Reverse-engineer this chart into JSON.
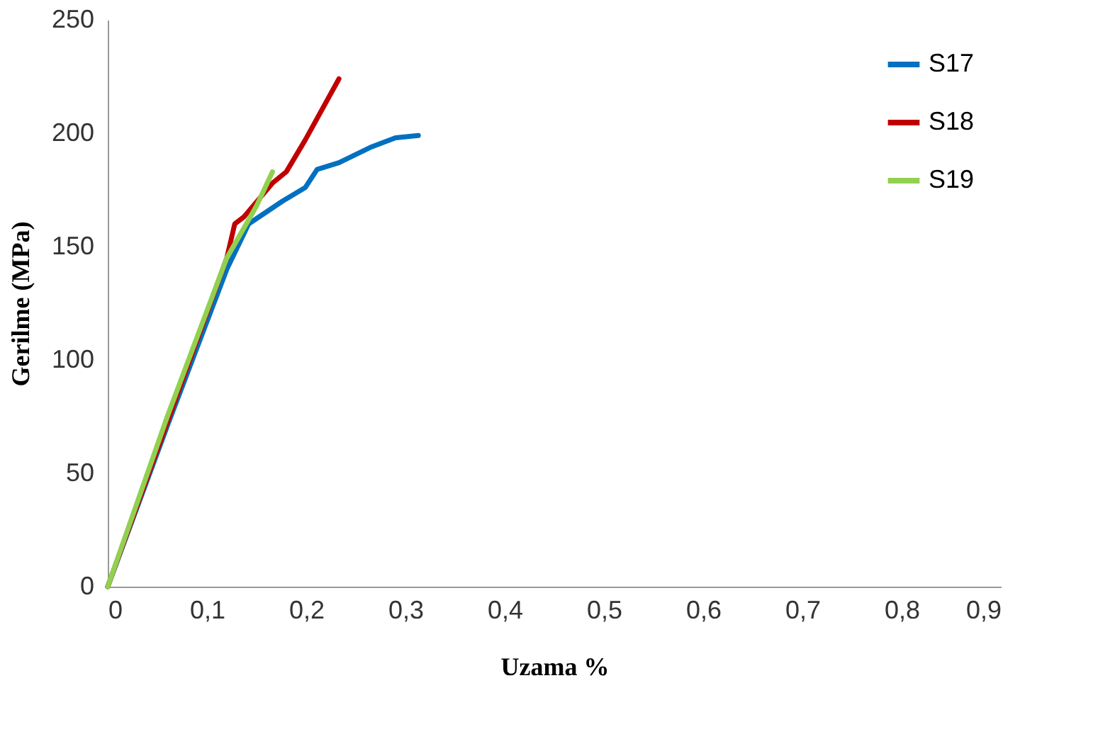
{
  "chart_data": {
    "type": "line",
    "xlabel": "Uzama %",
    "ylabel": "Gerilme (MPa)",
    "xlim": [
      0,
      0.9
    ],
    "xticks": [
      {
        "value": 0,
        "label": "0"
      },
      {
        "value": 0.1,
        "label": "0,1"
      },
      {
        "value": 0.2,
        "label": "0,2"
      },
      {
        "value": 0.3,
        "label": "0,3"
      },
      {
        "value": 0.4,
        "label": "0,4"
      },
      {
        "value": 0.5,
        "label": "0,5"
      },
      {
        "value": 0.6,
        "label": "0,6"
      },
      {
        "value": 0.7,
        "label": "0,7"
      },
      {
        "value": 0.8,
        "label": "0,8"
      },
      {
        "value": 0.9,
        "label": "0,9"
      }
    ],
    "ylim": [
      0,
      250
    ],
    "yticks": [
      0,
      50,
      100,
      150,
      200,
      250
    ],
    "grid": false,
    "legend": "top right",
    "marker": "none",
    "line_style": "solid",
    "series": [
      {
        "name": "S17",
        "color": "#0070c0",
        "x": [
          0,
          0.061,
          0.12,
          0.142,
          0.176,
          0.199,
          0.211,
          0.233,
          0.266,
          0.29,
          0.313
        ],
        "values": [
          0,
          72,
          140,
          160,
          170,
          176,
          184,
          187,
          194,
          198,
          199
        ]
      },
      {
        "name": "S18",
        "color": "#c00000",
        "x": [
          0,
          0.12,
          0.128,
          0.137,
          0.166,
          0.18,
          0.199,
          0.233
        ],
        "values": [
          0,
          145,
          160,
          163,
          178,
          183,
          197,
          224
        ]
      },
      {
        "name": "S19",
        "color": "#92d050",
        "x": [
          0,
          0.06,
          0.12,
          0.15,
          0.166
        ],
        "values": [
          0,
          75,
          145,
          168,
          183
        ]
      }
    ]
  }
}
